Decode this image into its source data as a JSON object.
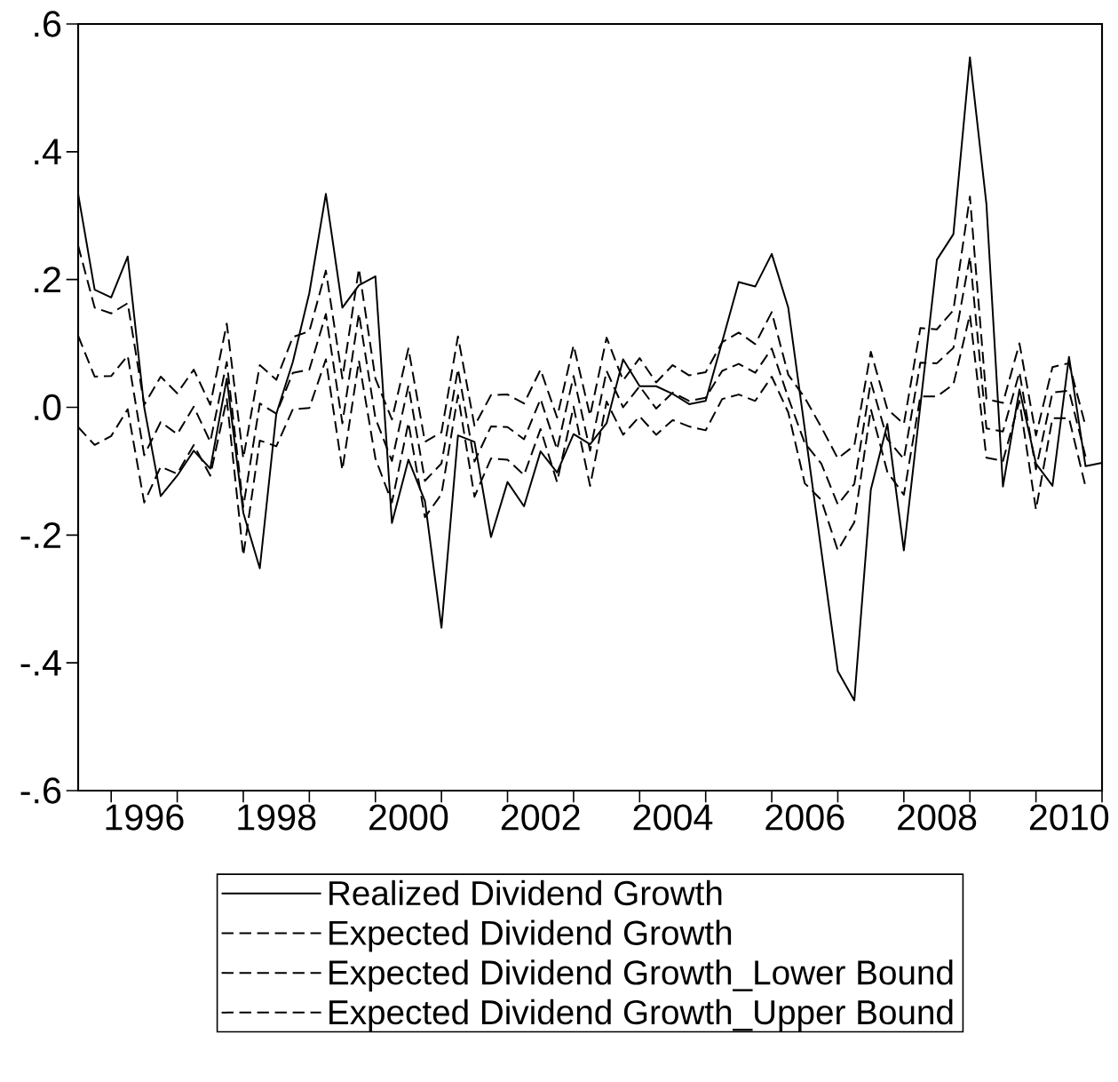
{
  "chart_data": {
    "type": "line",
    "x": [
      1995.5,
      1995.75,
      1996,
      1996.25,
      1996.5,
      1996.75,
      1997,
      1997.25,
      1997.5,
      1997.75,
      1998,
      1998.25,
      1998.5,
      1998.75,
      1999,
      1999.25,
      1999.5,
      1999.75,
      2000,
      2000.25,
      2000.5,
      2000.75,
      2001,
      2001.25,
      2001.5,
      2001.75,
      2002,
      2002.25,
      2002.5,
      2002.75,
      2003,
      2003.25,
      2003.5,
      2003.75,
      2004,
      2004.25,
      2004.5,
      2004.75,
      2005,
      2005.25,
      2005.5,
      2005.75,
      2006,
      2006.25,
      2006.5,
      2006.75,
      2007,
      2007.25,
      2007.5,
      2007.75,
      2008,
      2008.25,
      2008.5,
      2008.75,
      2009,
      2009.25,
      2009.5,
      2009.75,
      2010,
      2010.25,
      2010.5,
      2010.75,
      2011
    ],
    "series": [
      {
        "name": "Realized Dividend Growth",
        "color": "#000000",
        "line_style": "solid",
        "values": [
          0.334,
          0.184,
          0.172,
          0.236,
          0.0,
          -0.139,
          -0.107,
          -0.068,
          -0.096,
          0.045,
          -0.165,
          -0.252,
          -0.01,
          0.071,
          0.179,
          0.334,
          0.156,
          0.191,
          0.205,
          -0.181,
          -0.082,
          -0.147,
          -0.345,
          -0.044,
          -0.054,
          -0.203,
          -0.117,
          -0.155,
          -0.069,
          -0.102,
          -0.042,
          -0.058,
          -0.025,
          0.075,
          0.033,
          0.033,
          0.021,
          0.005,
          0.01,
          0.103,
          0.196,
          0.189,
          0.24,
          0.156,
          -0.034,
          -0.224,
          -0.413,
          -0.459,
          -0.129,
          -0.026,
          -0.224,
          0.003,
          0.231,
          0.271,
          0.548,
          0.318,
          -0.124,
          0.028,
          -0.088,
          -0.123,
          0.079,
          -0.092,
          -0.087
        ]
      },
      {
        "name": "Expected Dividend Growth",
        "color": "#000000",
        "line_style": "dashed",
        "values": [
          0.112,
          0.048,
          0.049,
          0.081,
          -0.075,
          -0.023,
          -0.042,
          0.001,
          -0.054,
          0.071,
          -0.156,
          0.006,
          -0.01,
          0.054,
          0.059,
          0.146,
          -0.025,
          0.147,
          -0.017,
          -0.084,
          0.034,
          -0.115,
          -0.088,
          0.06,
          -0.085,
          -0.03,
          -0.031,
          -0.05,
          0.013,
          -0.066,
          0.049,
          -0.068,
          0.057,
          0.0,
          0.033,
          -0.002,
          0.023,
          0.01,
          0.015,
          0.057,
          0.068,
          0.054,
          0.092,
          0.015,
          -0.056,
          -0.088,
          -0.152,
          -0.12,
          0.04,
          -0.05,
          -0.081,
          0.07,
          0.069,
          0.093,
          0.236,
          -0.033,
          -0.038,
          0.055,
          -0.097,
          0.023,
          0.026,
          -0.077,
          null
        ]
      },
      {
        "name": "Expected Dividend Growth_Lower Bound",
        "color": "#000000",
        "line_style": "dashed",
        "values": [
          -0.031,
          -0.059,
          -0.045,
          -0.003,
          -0.149,
          -0.093,
          -0.104,
          -0.059,
          -0.107,
          0.013,
          -0.232,
          -0.052,
          -0.061,
          -0.003,
          -0.001,
          0.075,
          -0.098,
          0.073,
          -0.08,
          -0.149,
          -0.024,
          -0.172,
          -0.136,
          0.019,
          -0.14,
          -0.08,
          -0.082,
          -0.106,
          -0.034,
          -0.117,
          0.001,
          -0.123,
          0.009,
          -0.043,
          -0.014,
          -0.043,
          -0.02,
          -0.03,
          -0.036,
          0.013,
          0.02,
          0.01,
          0.048,
          -0.008,
          -0.119,
          -0.145,
          -0.224,
          -0.18,
          -0.003,
          -0.101,
          -0.137,
          0.017,
          0.017,
          0.036,
          0.145,
          -0.079,
          -0.084,
          0.01,
          -0.16,
          -0.017,
          -0.017,
          -0.124,
          null
        ]
      },
      {
        "name": "Expected Dividend Growth_Upper Bound",
        "color": "#000000",
        "line_style": "dashed",
        "values": [
          0.253,
          0.156,
          0.147,
          0.163,
          0.004,
          0.048,
          0.022,
          0.059,
          0.004,
          0.131,
          -0.08,
          0.066,
          0.043,
          0.11,
          0.119,
          0.214,
          0.045,
          0.217,
          0.045,
          -0.019,
          0.092,
          -0.054,
          -0.039,
          0.111,
          -0.029,
          0.019,
          0.02,
          0.006,
          0.059,
          -0.016,
          0.097,
          -0.013,
          0.109,
          0.042,
          0.077,
          0.039,
          0.066,
          0.05,
          0.055,
          0.102,
          0.117,
          0.099,
          0.149,
          0.051,
          0.015,
          -0.031,
          -0.08,
          -0.06,
          0.087,
          -0.003,
          -0.026,
          0.124,
          0.122,
          0.152,
          0.33,
          0.013,
          0.007,
          0.1,
          -0.044,
          0.063,
          0.069,
          -0.029,
          null
        ]
      }
    ],
    "xlim": [
      1995.5,
      2011
    ],
    "xticks": [
      {
        "value": 1996,
        "label": null
      },
      {
        "value": 1997,
        "label": null
      },
      {
        "value": 1998,
        "label": null
      },
      {
        "value": 1999,
        "label": null
      },
      {
        "value": 2000,
        "label": null
      },
      {
        "value": 2001,
        "label": null
      },
      {
        "value": 2002,
        "label": null
      },
      {
        "value": 2003,
        "label": null
      },
      {
        "value": 2004,
        "label": null
      },
      {
        "value": 2005,
        "label": null
      },
      {
        "value": 2006,
        "label": null
      },
      {
        "value": 2007,
        "label": null
      },
      {
        "value": 2008,
        "label": null
      },
      {
        "value": 2009,
        "label": null
      },
      {
        "value": 2010,
        "label": null
      },
      {
        "value": 2011,
        "label": null
      },
      {
        "value": 1996.5,
        "label": "1996"
      },
      {
        "value": 1998.5,
        "label": "1998"
      },
      {
        "value": 2000.5,
        "label": "2000"
      },
      {
        "value": 2002.5,
        "label": "2002"
      },
      {
        "value": 2004.5,
        "label": "2004"
      },
      {
        "value": 2006.5,
        "label": "2006"
      },
      {
        "value": 2008.5,
        "label": "2008"
      },
      {
        "value": 2010.5,
        "label": "2010"
      }
    ],
    "ylim": [
      -0.6,
      0.6
    ],
    "yticks": [
      {
        "value": -0.6,
        "label": "-.6"
      },
      {
        "value": -0.4,
        "label": "-.4"
      },
      {
        "value": -0.2,
        "label": "-.2"
      },
      {
        "value": 0,
        "label": ".0"
      },
      {
        "value": 0.2,
        "label": ".2"
      },
      {
        "value": 0.4,
        "label": ".4"
      },
      {
        "value": 0.6,
        "label": ".6"
      }
    ],
    "legend": "bottom",
    "marker": "none"
  }
}
